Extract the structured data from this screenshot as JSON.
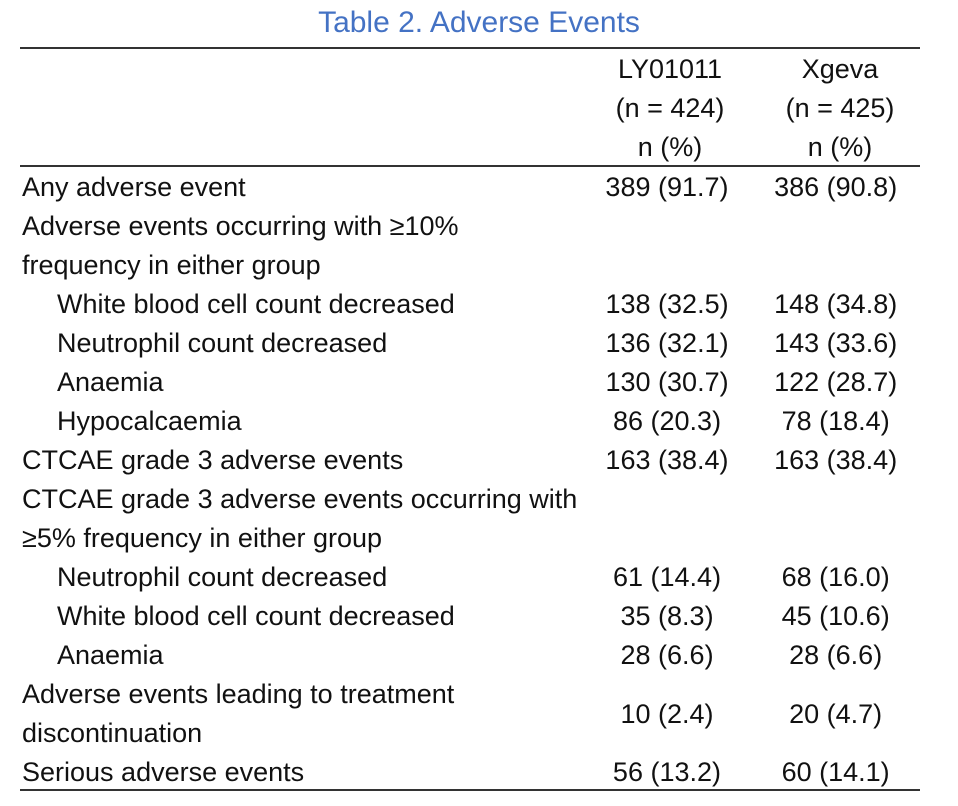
{
  "title": "Table 2. Adverse Events",
  "columns": [
    {
      "name": "LY01011",
      "n": "(n = 424)",
      "unit": "n (%)"
    },
    {
      "name": "Xgeva",
      "n": "(n = 425)",
      "unit": "n (%)"
    }
  ],
  "rows": [
    {
      "label": "Any adverse event",
      "indent": false,
      "v1": "389 (91.7)",
      "v2": "386 (90.8)"
    },
    {
      "label": "Adverse events occurring with ≥10% frequency in either group",
      "indent": false,
      "v1": "",
      "v2": "",
      "lines": 2
    },
    {
      "label": "White blood cell count decreased",
      "indent": true,
      "v1": "138 (32.5)",
      "v2": "148 (34.8)"
    },
    {
      "label": "Neutrophil count decreased",
      "indent": true,
      "v1": "136 (32.1)",
      "v2": "143 (33.6)"
    },
    {
      "label": "Anaemia",
      "indent": true,
      "v1": "130 (30.7)",
      "v2": "122 (28.7)"
    },
    {
      "label": "Hypocalcaemia",
      "indent": true,
      "v1": "86 (20.3)",
      "v2": "78 (18.4)"
    },
    {
      "label": "CTCAE grade  3 adverse events",
      "indent": false,
      "v1": "163 (38.4)",
      "v2": "163 (38.4)"
    },
    {
      "label": "CTCAE grade 3 adverse events occurring with ≥5% frequency in either group",
      "indent": false,
      "v1": "",
      "v2": "",
      "lines": 2
    },
    {
      "label": "Neutrophil count decreased",
      "indent": true,
      "v1": "61 (14.4)",
      "v2": "68 (16.0)"
    },
    {
      "label": "White blood cell count decreased",
      "indent": true,
      "v1": "35 (8.3)",
      "v2": "45 (10.6)"
    },
    {
      "label": "Anaemia",
      "indent": true,
      "v1": "28 (6.6)",
      "v2": "28 (6.6)"
    },
    {
      "label": "Adverse events leading to treatment discontinuation",
      "indent": false,
      "v1": "10 (2.4)",
      "v2": "20 (4.7)",
      "lines": 2
    },
    {
      "label": "Serious adverse events",
      "indent": false,
      "v1": "56 (13.2)",
      "v2": "60 (14.1)"
    }
  ]
}
